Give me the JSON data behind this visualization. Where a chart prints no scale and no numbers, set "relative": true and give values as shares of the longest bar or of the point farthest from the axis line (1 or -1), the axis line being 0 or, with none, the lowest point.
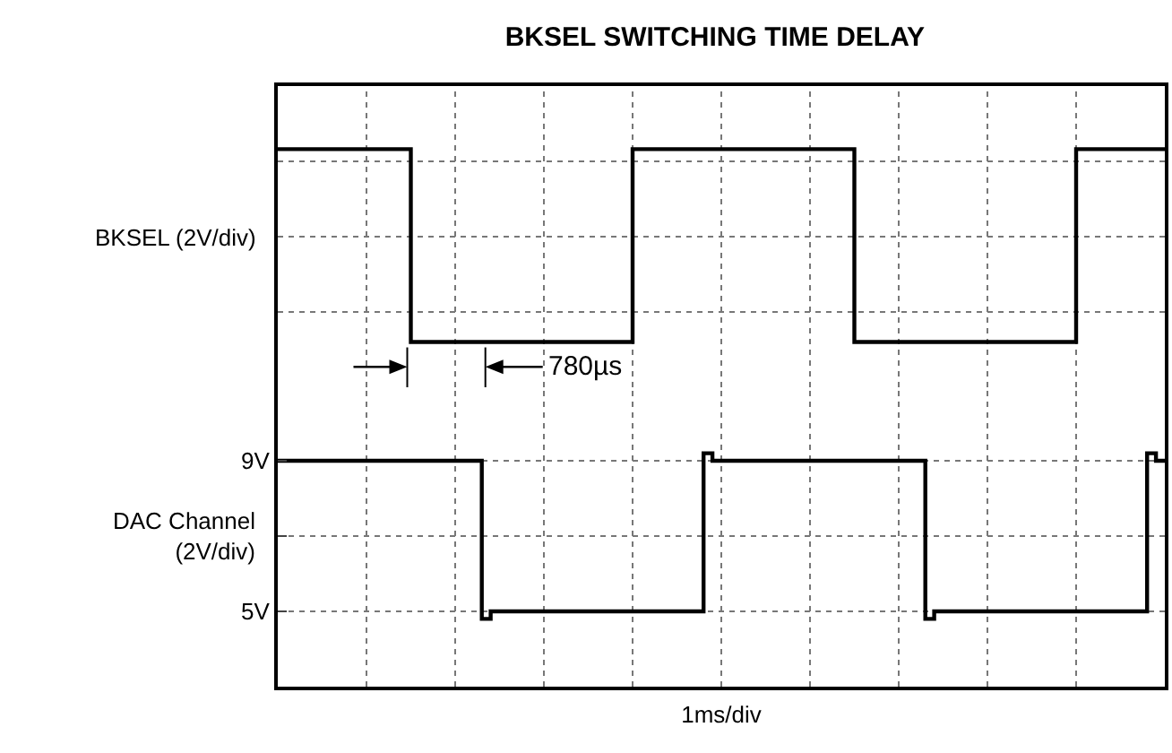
{
  "chart_data": [
    {
      "type": "step",
      "title": "BKSEL SWITCHING TIME DELAY",
      "ylabel": "BKSEL (2V/div)",
      "relative": true,
      "grid": true,
      "tick_labels": false,
      "annotations": [
        "780µs"
      ],
      "categories": [
        null,
        null,
        null,
        null,
        null,
        null,
        null,
        null,
        null,
        null,
        null,
        null,
        null,
        null,
        null,
        null,
        null,
        null,
        null,
        null,
        null,
        null,
        null,
        null,
        null,
        null,
        null,
        null,
        null,
        null,
        null,
        null,
        null,
        null,
        null,
        null,
        null,
        null,
        null,
        null,
        null,
        null,
        null,
        null,
        null,
        null,
        null,
        null,
        null,
        null,
        null,
        null,
        null,
        null,
        null,
        null,
        null,
        null,
        null,
        null,
        null,
        null,
        null,
        null,
        null,
        null,
        null,
        null,
        null,
        null,
        null,
        null,
        null,
        null,
        null,
        null,
        null,
        null,
        null,
        null,
        null,
        null,
        null,
        null,
        null,
        null,
        null,
        null,
        null,
        null,
        null,
        null,
        null,
        null,
        null,
        null,
        null,
        null,
        null,
        null,
        null
      ],
      "series": [
        {
          "color": "#000000",
          "values": [
            1,
            1,
            1,
            1,
            1,
            1,
            1,
            1,
            1,
            1,
            1,
            1,
            1,
            1,
            1,
            0.19,
            0.19,
            0.19,
            0.19,
            0.19,
            0.19,
            0.19,
            0.19,
            0.19,
            0.19,
            0.19,
            0.19,
            0.19,
            0.19,
            0.19,
            0.19,
            0.19,
            0.19,
            0.19,
            0.19,
            0.19,
            0.19,
            0.19,
            0.19,
            0.19,
            1,
            1,
            1,
            1,
            1,
            1,
            1,
            1,
            1,
            1,
            1,
            1,
            1,
            1,
            1,
            1,
            1,
            1,
            1,
            1,
            1,
            1,
            1,
            1,
            1,
            0.19,
            0.19,
            0.19,
            0.19,
            0.19,
            0.19,
            0.19,
            0.19,
            0.19,
            0.19,
            0.19,
            0.19,
            0.19,
            0.19,
            0.19,
            0.19,
            0.19,
            0.19,
            0.19,
            0.19,
            0.19,
            0.19,
            0.19,
            0.19,
            0.19,
            1,
            1,
            1,
            1,
            1,
            1,
            1,
            1,
            1,
            1,
            1
          ]
        }
      ]
    },
    {
      "type": "step",
      "ylabel": "DAC Channel\n(2V/div)",
      "xlabel": "1ms/div",
      "grid": true,
      "tick_labels": "y",
      "categories": [
        null,
        null,
        null,
        null,
        null,
        null,
        null,
        null,
        null,
        null,
        null,
        null,
        null,
        null,
        null,
        null,
        null,
        null,
        null,
        null,
        null,
        null,
        null,
        null,
        null,
        null,
        null,
        null,
        null,
        null,
        null,
        null,
        null,
        null,
        null,
        null,
        null,
        null,
        null,
        null,
        null,
        null,
        null,
        null,
        null,
        null,
        null,
        null,
        null,
        null,
        null,
        null,
        null,
        null,
        null,
        null,
        null,
        null,
        null,
        null,
        null,
        null,
        null,
        null,
        null,
        null,
        null,
        null,
        null,
        null,
        null,
        null,
        null,
        null,
        null,
        null,
        null,
        null,
        null,
        null,
        null,
        null,
        null,
        null,
        null,
        null,
        null,
        null,
        null,
        null,
        null,
        null,
        null,
        null,
        null,
        null,
        null,
        null,
        null,
        null,
        null
      ],
      "ylim": [
        3,
        11
      ],
      "yticks": [
        {
          "value": 9,
          "label": "9V"
        },
        {
          "value": 7,
          "label": null
        },
        {
          "value": 5,
          "label": "5V"
        }
      ],
      "series": [
        {
          "color": "#000000",
          "values": [
            9,
            9,
            9,
            9,
            9,
            9,
            9,
            9,
            9,
            9,
            9,
            9,
            9,
            9,
            9,
            9,
            9,
            9,
            9,
            9,
            9,
            9,
            9,
            4.8,
            5,
            5,
            5,
            5,
            5,
            5,
            5,
            5,
            5,
            5,
            5,
            5,
            5,
            5,
            5,
            5,
            5,
            5,
            5,
            5,
            5,
            5,
            5,
            5,
            9.2,
            9,
            9,
            9,
            9,
            9,
            9,
            9,
            9,
            9,
            9,
            9,
            9,
            9,
            9,
            9,
            9,
            9,
            9,
            9,
            9,
            9,
            9,
            9,
            9,
            4.8,
            5,
            5,
            5,
            5,
            5,
            5,
            5,
            5,
            5,
            5,
            5,
            5,
            5,
            5,
            5,
            5,
            5,
            5,
            5,
            5,
            5,
            5,
            5,
            5,
            9.2,
            9,
            9
          ]
        }
      ]
    }
  ]
}
